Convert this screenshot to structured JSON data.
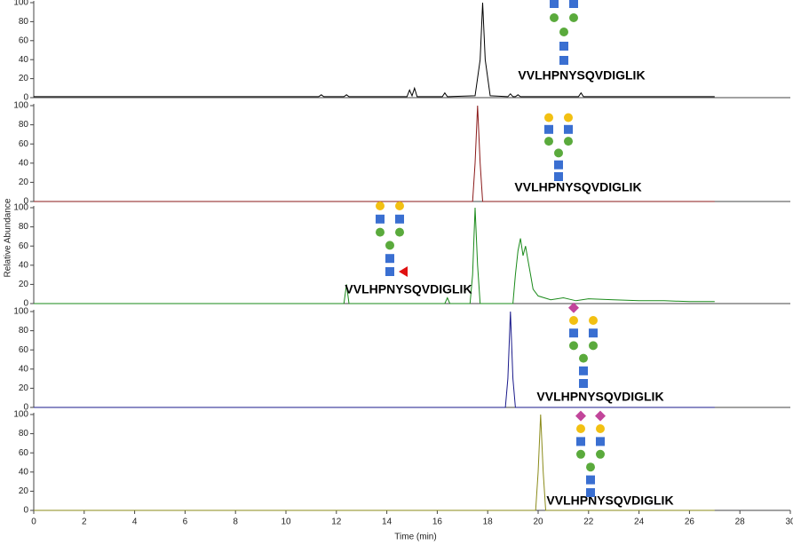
{
  "chart_data": [
    {
      "type": "line",
      "annotation": "VVLHPNYSQVDIGLIK",
      "xlim": [
        0,
        30
      ],
      "ylim": [
        0,
        100
      ],
      "yticks": [
        0,
        20,
        40,
        60,
        80,
        100
      ],
      "x": [
        0,
        11.3,
        11.4,
        11.5,
        12.3,
        12.4,
        12.5,
        14.8,
        14.9,
        15.0,
        15.1,
        15.2,
        16.2,
        16.3,
        16.4,
        17.5,
        17.7,
        17.8,
        17.9,
        18.1,
        18.8,
        18.9,
        19.0,
        19.1,
        19.2,
        19.3,
        21.6,
        21.7,
        21.8,
        27
      ],
      "series": [
        {
          "color": "#000000",
          "values": [
            1,
            1,
            3,
            1,
            1,
            3,
            1,
            1,
            8,
            2,
            10,
            1,
            1,
            5,
            1,
            2,
            40,
            100,
            40,
            2,
            1,
            4,
            1,
            1,
            3,
            1,
            1,
            5,
            1,
            1
          ]
        }
      ]
    },
    {
      "type": "line",
      "annotation": "VVLHPNYSQVDIGLIK",
      "xlim": [
        0,
        30
      ],
      "ylim": [
        0,
        100
      ],
      "yticks": [
        0,
        20,
        40,
        60,
        80,
        100
      ],
      "x": [
        0,
        17.4,
        17.5,
        17.6,
        17.7,
        17.8,
        27
      ],
      "series": [
        {
          "color": "#8b1a1a",
          "values": [
            0,
            0,
            40,
            100,
            40,
            0,
            0
          ]
        }
      ]
    },
    {
      "type": "line",
      "annotation": "VVLHPNYSQVDIGLIK",
      "ylabel": "Relative Abundance",
      "xlim": [
        0,
        30
      ],
      "ylim": [
        0,
        100
      ],
      "yticks": [
        0,
        20,
        40,
        60,
        80,
        100
      ],
      "x": [
        0,
        12.3,
        12.4,
        12.5,
        16.3,
        16.4,
        16.5,
        17.3,
        17.4,
        17.5,
        17.6,
        17.7,
        19.0,
        19.1,
        19.2,
        19.3,
        19.4,
        19.5,
        19.6,
        19.7,
        19.8,
        20.0,
        20.5,
        21.0,
        21.5,
        22,
        23,
        24,
        25,
        26,
        27
      ],
      "series": [
        {
          "color": "#1a8a1a",
          "values": [
            0,
            0,
            20,
            0,
            0,
            6,
            0,
            0,
            30,
            100,
            40,
            0,
            0,
            30,
            55,
            68,
            50,
            60,
            45,
            30,
            15,
            8,
            4,
            6,
            3,
            5,
            4,
            3,
            3,
            2,
            2
          ]
        }
      ]
    },
    {
      "type": "line",
      "annotation": "VVLHPNYSQVDIGLIK",
      "xlim": [
        0,
        30
      ],
      "ylim": [
        0,
        100
      ],
      "yticks": [
        0,
        20,
        40,
        60,
        80,
        100
      ],
      "x": [
        0,
        18.7,
        18.8,
        18.9,
        19.0,
        19.1,
        27
      ],
      "series": [
        {
          "color": "#1a1a8b",
          "values": [
            0,
            0,
            30,
            100,
            30,
            0,
            0
          ]
        }
      ]
    },
    {
      "type": "line",
      "annotation": "VVLHPNYSQVDIGLIK",
      "xlabel": "Time (min)",
      "xlim": [
        0,
        30
      ],
      "ylim": [
        0,
        100
      ],
      "yticks": [
        0,
        20,
        40,
        60,
        80,
        100
      ],
      "xticks": [
        0,
        2,
        4,
        6,
        8,
        10,
        12,
        14,
        16,
        18,
        20,
        22,
        24,
        26,
        28,
        30
      ],
      "x": [
        0,
        19.9,
        20.0,
        20.1,
        20.2,
        20.3,
        27
      ],
      "series": [
        {
          "color": "#8b8b1a",
          "values": [
            0,
            0,
            40,
            100,
            40,
            0,
            0
          ]
        }
      ]
    }
  ]
}
